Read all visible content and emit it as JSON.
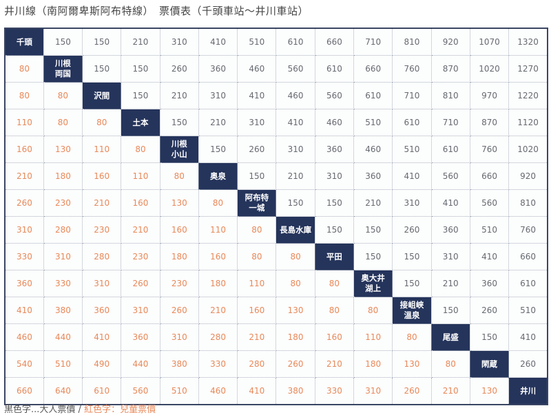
{
  "header": {
    "title": "井川線（南阿爾卑斯阿布特線）　票價表（千頭車站～井川車站）"
  },
  "colors": {
    "station_bg": "#25345b",
    "adult_text": "#666a70",
    "child_text": "#e8895a",
    "border": "#3a4563"
  },
  "stations": [
    "千頭",
    "川根\n両国",
    "沢間",
    "土本",
    "川根\n小山",
    "奥泉",
    "阿布特\n一城",
    "長島水庫",
    "平田",
    "奥大井\n湖上",
    "接岨峡\n溫泉",
    "尾盛",
    "閑蔵",
    "井川"
  ],
  "fare_matrix": [
    [
      "千頭",
      "150",
      "150",
      "210",
      "310",
      "410",
      "510",
      "610",
      "660",
      "710",
      "810",
      "920",
      "1070",
      "1320"
    ],
    [
      "80",
      "川根\n両国",
      "150",
      "150",
      "260",
      "360",
      "460",
      "560",
      "610",
      "660",
      "760",
      "870",
      "1020",
      "1270"
    ],
    [
      "80",
      "80",
      "沢間",
      "150",
      "210",
      "310",
      "410",
      "460",
      "560",
      "610",
      "710",
      "810",
      "970",
      "1220"
    ],
    [
      "110",
      "80",
      "80",
      "土本",
      "150",
      "210",
      "310",
      "410",
      "460",
      "510",
      "610",
      "710",
      "870",
      "1120"
    ],
    [
      "160",
      "130",
      "110",
      "80",
      "川根\n小山",
      "150",
      "260",
      "310",
      "360",
      "460",
      "510",
      "610",
      "760",
      "1020"
    ],
    [
      "210",
      "180",
      "160",
      "110",
      "80",
      "奥泉",
      "150",
      "210",
      "310",
      "360",
      "410",
      "560",
      "660",
      "920"
    ],
    [
      "260",
      "230",
      "210",
      "160",
      "130",
      "80",
      "阿布特\n一城",
      "150",
      "150",
      "210",
      "310",
      "410",
      "560",
      "810"
    ],
    [
      "310",
      "280",
      "230",
      "210",
      "160",
      "110",
      "80",
      "長島水庫",
      "150",
      "150",
      "260",
      "360",
      "510",
      "760"
    ],
    [
      "330",
      "310",
      "280",
      "230",
      "180",
      "160",
      "80",
      "80",
      "平田",
      "150",
      "150",
      "310",
      "410",
      "660"
    ],
    [
      "360",
      "330",
      "310",
      "260",
      "230",
      "180",
      "110",
      "80",
      "80",
      "奥大井\n湖上",
      "150",
      "210",
      "360",
      "610"
    ],
    [
      "410",
      "380",
      "360",
      "310",
      "260",
      "210",
      "160",
      "130",
      "80",
      "80",
      "接岨峡\n溫泉",
      "150",
      "260",
      "510"
    ],
    [
      "460",
      "440",
      "410",
      "360",
      "310",
      "280",
      "210",
      "180",
      "160",
      "110",
      "80",
      "尾盛",
      "150",
      "410"
    ],
    [
      "540",
      "510",
      "490",
      "440",
      "380",
      "330",
      "280",
      "260",
      "210",
      "180",
      "130",
      "80",
      "閑蔵",
      "260"
    ],
    [
      "660",
      "640",
      "610",
      "560",
      "510",
      "460",
      "410",
      "380",
      "330",
      "310",
      "260",
      "210",
      "130",
      "井川"
    ]
  ],
  "legend": {
    "adult_note": "黒色字...大人票價",
    "separator": " / ",
    "child_note": "紅色字：兒童票價"
  }
}
